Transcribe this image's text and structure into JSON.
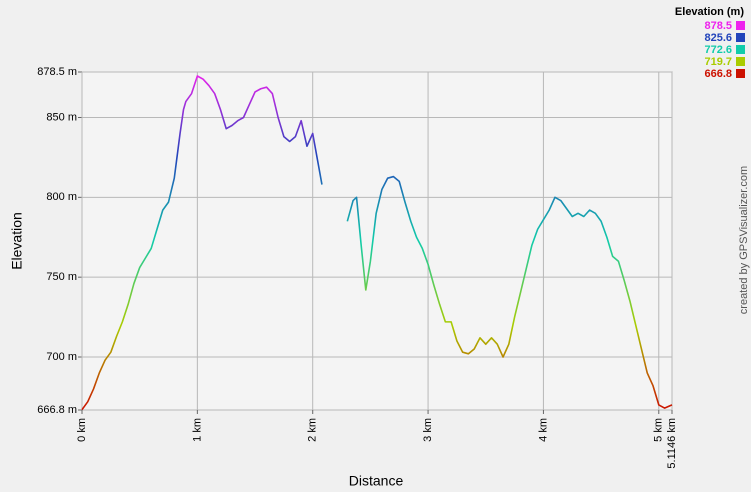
{
  "chart_data": {
    "type": "line",
    "x_label": "Distance",
    "y_label": "Elevation",
    "legend_title": "Elevation (m)",
    "legend": [
      {
        "value": 878.5,
        "color": "#ee22ee"
      },
      {
        "value": 825.6,
        "color": "#2244bb"
      },
      {
        "value": 772.6,
        "color": "#11ccaa"
      },
      {
        "value": 719.7,
        "color": "#aacc00"
      },
      {
        "value": 666.8,
        "color": "#cc1100"
      }
    ],
    "credit": "created by GPSVisualizer.com",
    "grid": true,
    "xlim": [
      0,
      5.1146
    ],
    "ylim": [
      666.8,
      878.5
    ],
    "xticks": [
      {
        "value": 0,
        "label": "0 km"
      },
      {
        "value": 1,
        "label": "1 km"
      },
      {
        "value": 2,
        "label": "2 km"
      },
      {
        "value": 3,
        "label": "3 km"
      },
      {
        "value": 4,
        "label": "4 km"
      },
      {
        "value": 5,
        "label": "5 km"
      },
      {
        "value": 5.1146,
        "label": "5.1146 km"
      }
    ],
    "yticks": [
      {
        "value": 666.8,
        "label": "666.8 m"
      },
      {
        "value": 700,
        "label": "700 m"
      },
      {
        "value": 750,
        "label": "750 m"
      },
      {
        "value": 800,
        "label": "800 m"
      },
      {
        "value": 850,
        "label": "850 m"
      },
      {
        "value": 878.5,
        "label": "878.5 m"
      }
    ],
    "x": [
      0,
      0.05,
      0.1,
      0.15,
      0.2,
      0.25,
      0.3,
      0.35,
      0.4,
      0.45,
      0.5,
      0.55,
      0.6,
      0.65,
      0.7,
      0.75,
      0.8,
      0.85,
      0.88,
      0.9,
      0.95,
      1.0,
      1.05,
      1.1,
      1.15,
      1.2,
      1.25,
      1.3,
      1.35,
      1.4,
      1.45,
      1.5,
      1.55,
      1.6,
      1.65,
      1.7,
      1.75,
      1.8,
      1.85,
      1.9,
      1.95,
      2.0,
      2.05,
      2.08,
      2.2,
      2.3,
      2.35,
      2.38,
      2.42,
      2.46,
      2.5,
      2.55,
      2.6,
      2.65,
      2.7,
      2.75,
      2.8,
      2.85,
      2.9,
      2.95,
      3.0,
      3.05,
      3.1,
      3.15,
      3.2,
      3.25,
      3.3,
      3.35,
      3.4,
      3.45,
      3.5,
      3.55,
      3.6,
      3.65,
      3.7,
      3.75,
      3.8,
      3.85,
      3.9,
      3.95,
      4.0,
      4.05,
      4.1,
      4.15,
      4.2,
      4.25,
      4.3,
      4.35,
      4.4,
      4.45,
      4.5,
      4.55,
      4.6,
      4.65,
      4.7,
      4.75,
      4.8,
      4.85,
      4.9,
      4.95,
      5.0,
      5.05,
      5.1146
    ],
    "values": [
      667,
      672,
      680,
      690,
      698,
      703,
      713,
      722,
      733,
      746,
      756,
      762,
      768,
      780,
      792,
      797,
      812,
      840,
      855,
      860,
      865,
      876,
      874,
      870,
      865,
      855,
      843,
      845,
      848,
      850,
      858,
      866,
      868,
      869,
      865,
      850,
      838,
      835,
      838,
      848,
      832,
      840,
      820,
      808,
      null,
      785,
      798,
      800,
      770,
      742,
      760,
      790,
      805,
      812,
      813,
      810,
      797,
      785,
      775,
      768,
      758,
      745,
      733,
      722,
      722,
      710,
      703,
      702,
      705,
      712,
      708,
      712,
      708,
      700,
      708,
      725,
      740,
      755,
      770,
      780,
      786,
      792,
      800,
      798,
      793,
      788,
      790,
      788,
      792,
      790,
      785,
      775,
      763,
      760,
      748,
      735,
      720,
      705,
      690,
      682,
      670,
      668,
      670
    ]
  }
}
